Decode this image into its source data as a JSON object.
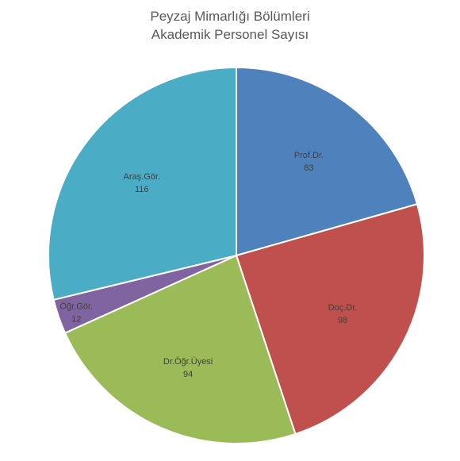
{
  "chart_data": {
    "type": "pie",
    "title": "Peyzaj Mimarlığı Bölümleri",
    "subtitle": "Akademik Personel Sayısı",
    "categories": [
      "Prof.Dr.",
      "Doç.Dr.",
      "Dr.Öğr.Üyesi",
      "Öğr.Gör.",
      "Araş.Gör."
    ],
    "values": [
      83,
      98,
      94,
      12,
      116
    ],
    "colors": [
      "#4f81bd",
      "#c0504d",
      "#9bbb59",
      "#8064a2",
      "#4bacc6"
    ]
  }
}
